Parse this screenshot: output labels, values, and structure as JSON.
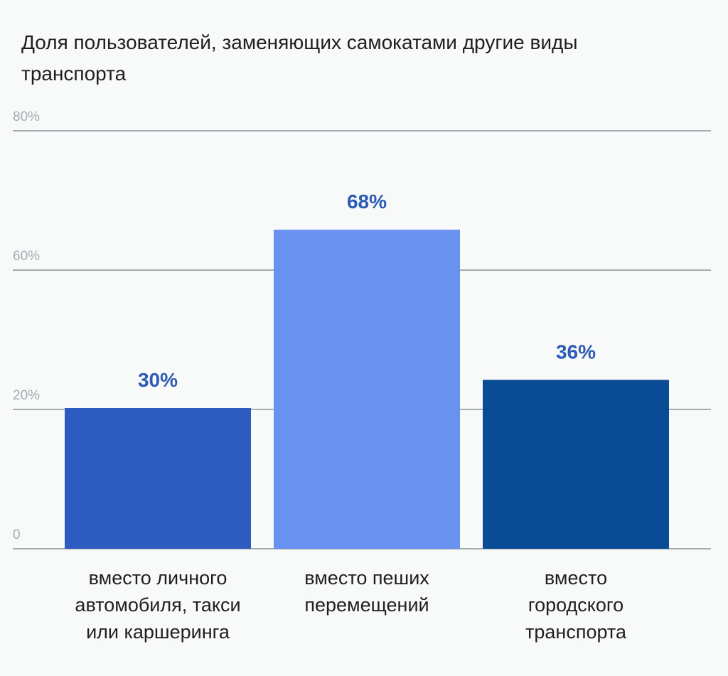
{
  "chart_data": {
    "type": "bar",
    "title": "Доля пользователей, заменяющих самокатами другие виды транспорта",
    "categories": [
      "вместо личного автомобиля, такси или каршеринга",
      "вместо пеших перемещений",
      "вместо городского транспорта"
    ],
    "category_lines": [
      [
        "вместо личного",
        "автомобиля, такси",
        "или каршеринга"
      ],
      [
        "вместо пеших",
        "перемещений"
      ],
      [
        "вместо",
        "городского",
        "транспорта"
      ]
    ],
    "values": [
      30,
      68,
      36
    ],
    "value_labels": [
      "30%",
      "68%",
      "36%"
    ],
    "colors": [
      "#2d5bbf",
      "#6891f0",
      "#0a4b96"
    ],
    "label_color": "#2c5bb5",
    "y_tick_labels": [
      "0",
      "20%",
      "60%",
      "80%"
    ],
    "grid": true,
    "xlabel": "",
    "ylabel": ""
  }
}
